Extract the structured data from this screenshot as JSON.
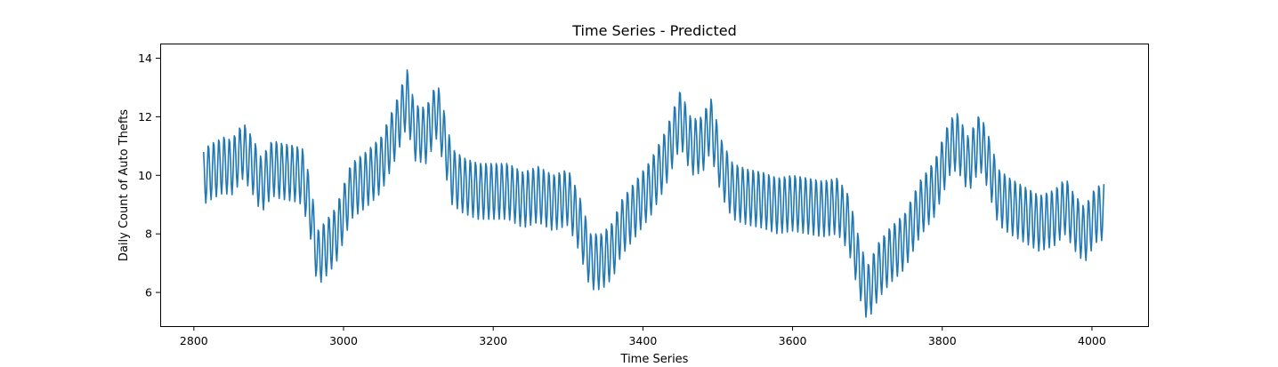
{
  "chart_data": {
    "type": "line",
    "title": "Time Series - Predicted",
    "xlabel": "Time Series",
    "ylabel": "Daily Count of Auto Thefts",
    "xlim": [
      2755,
      4075
    ],
    "ylim": [
      4.85,
      14.5
    ],
    "xticks": [
      2800,
      3000,
      3200,
      3400,
      3600,
      3800,
      4000
    ],
    "yticks": [
      6,
      8,
      10,
      12,
      14
    ],
    "grid": false,
    "line_color": "#1f77b4",
    "series": [
      {
        "x_start": 2813,
        "x_end": 4016,
        "weekly_period_days": 7,
        "trend_points": [
          [
            2813,
            10.0
          ],
          [
            2825,
            10.2
          ],
          [
            2840,
            10.4
          ],
          [
            2850,
            10.3
          ],
          [
            2866,
            10.9
          ],
          [
            2880,
            10.3
          ],
          [
            2890,
            9.7
          ],
          [
            2905,
            10.3
          ],
          [
            2915,
            10.2
          ],
          [
            2935,
            10.1
          ],
          [
            2945,
            10.0
          ],
          [
            2955,
            9.0
          ],
          [
            2965,
            7.2
          ],
          [
            2975,
            7.5
          ],
          [
            2990,
            8.0
          ],
          [
            3010,
            9.5
          ],
          [
            3030,
            9.9
          ],
          [
            3050,
            10.4
          ],
          [
            3070,
            11.6
          ],
          [
            3085,
            12.7
          ],
          [
            3095,
            11.5
          ],
          [
            3110,
            11.4
          ],
          [
            3125,
            12.3
          ],
          [
            3135,
            11.2
          ],
          [
            3145,
            10.0
          ],
          [
            3160,
            9.7
          ],
          [
            3180,
            9.5
          ],
          [
            3200,
            9.5
          ],
          [
            3220,
            9.5
          ],
          [
            3240,
            9.2
          ],
          [
            3260,
            9.4
          ],
          [
            3280,
            9.1
          ],
          [
            3300,
            9.3
          ],
          [
            3315,
            8.4
          ],
          [
            3330,
            7.1
          ],
          [
            3345,
            7.1
          ],
          [
            3360,
            7.5
          ],
          [
            3370,
            8.2
          ],
          [
            3390,
            8.9
          ],
          [
            3410,
            9.6
          ],
          [
            3430,
            10.6
          ],
          [
            3450,
            12.0
          ],
          [
            3465,
            11.0
          ],
          [
            3480,
            11.1
          ],
          [
            3490,
            11.8
          ],
          [
            3505,
            10.3
          ],
          [
            3520,
            9.5
          ],
          [
            3540,
            9.3
          ],
          [
            3560,
            9.2
          ],
          [
            3580,
            9.0
          ],
          [
            3600,
            9.1
          ],
          [
            3620,
            9.0
          ],
          [
            3640,
            8.9
          ],
          [
            3660,
            9.0
          ],
          [
            3675,
            8.4
          ],
          [
            3690,
            6.8
          ],
          [
            3700,
            6.0
          ],
          [
            3715,
            6.8
          ],
          [
            3730,
            7.3
          ],
          [
            3750,
            7.8
          ],
          [
            3770,
            8.9
          ],
          [
            3790,
            9.6
          ],
          [
            3810,
            11.0
          ],
          [
            3820,
            11.2
          ],
          [
            3835,
            10.4
          ],
          [
            3850,
            11.2
          ],
          [
            3860,
            10.6
          ],
          [
            3875,
            9.3
          ],
          [
            3890,
            9.0
          ],
          [
            3910,
            8.7
          ],
          [
            3930,
            8.4
          ],
          [
            3950,
            8.6
          ],
          [
            3965,
            9.0
          ],
          [
            3975,
            8.5
          ],
          [
            3990,
            8.0
          ],
          [
            4005,
            8.7
          ],
          [
            4016,
            8.8
          ]
        ],
        "weekly_pattern": [
          0.8,
          0.2,
          -0.6,
          -1.0,
          -0.6,
          0.2,
          0.9
        ]
      }
    ]
  }
}
